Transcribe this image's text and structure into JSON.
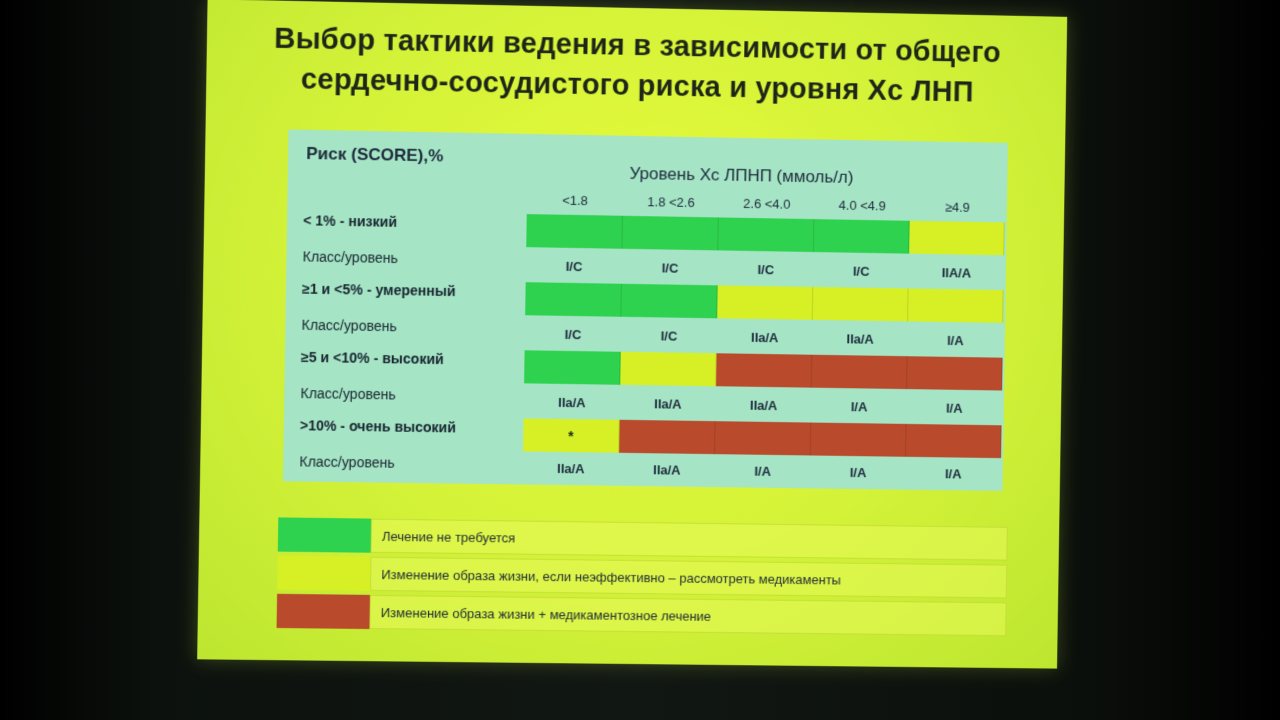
{
  "slide": {
    "title_line1": "Выбор тактики ведения в зависимости от общего",
    "title_line2": "сердечно-сосудистого риска и уровня Хс ЛНП"
  },
  "table": {
    "risk_header": "Риск (SCORE),%",
    "ldl_header": "Уровень Хс ЛПНП (ммоль/л)",
    "columns": [
      "<1.8",
      "1.8  <2.6",
      "2.6  <4.0",
      "4.0  <4.9",
      "≥4.9"
    ],
    "class_label": "Класс/уровень",
    "rows": [
      {
        "risk": "< 1% - низкий",
        "cells": [
          "no-treatment",
          "no-treatment",
          "no-treatment",
          "no-treatment",
          "lifestyle"
        ],
        "marks": [
          "",
          "",
          "",
          "",
          ""
        ],
        "classes": [
          "I/C",
          "I/C",
          "I/C",
          "I/C",
          "IIA/A"
        ]
      },
      {
        "risk": "≥1 и <5% -  умеренный",
        "cells": [
          "no-treatment",
          "no-treatment",
          "lifestyle",
          "lifestyle",
          "lifestyle"
        ],
        "marks": [
          "",
          "",
          "",
          "",
          ""
        ],
        "classes": [
          "I/C",
          "I/C",
          "IIa/A",
          "IIa/A",
          "I/A"
        ]
      },
      {
        "risk": "≥5 и <10% -  высокий",
        "cells": [
          "no-treatment",
          "lifestyle",
          "lifestyle-drugs",
          "lifestyle-drugs",
          "lifestyle-drugs"
        ],
        "marks": [
          "",
          "",
          "",
          "",
          ""
        ],
        "classes": [
          "IIa/A",
          "IIa/A",
          "IIa/A",
          "I/A",
          "I/A"
        ]
      },
      {
        "risk": ">10% - очень высокий",
        "cells": [
          "lifestyle",
          "lifestyle-drugs",
          "lifestyle-drugs",
          "lifestyle-drugs",
          "lifestyle-drugs"
        ],
        "marks": [
          "*",
          "",
          "",
          "",
          ""
        ],
        "classes": [
          "IIa/A",
          "IIa/A",
          "I/A",
          "I/A",
          "I/A"
        ]
      }
    ]
  },
  "legend": [
    {
      "key": "no-treatment",
      "text": "Лечение  не  требуется"
    },
    {
      "key": "lifestyle",
      "text": "Изменение  образа жизни,  если неэффективно  – рассмотреть медикаменты"
    },
    {
      "key": "lifestyle-drugs",
      "text": "Изменение  образа жизни  + медикаментозное  лечение"
    }
  ],
  "colors": {
    "no-treatment": "#2fd24e",
    "lifestyle": "#d6f025",
    "lifestyle-drugs": "#b94a2c"
  }
}
